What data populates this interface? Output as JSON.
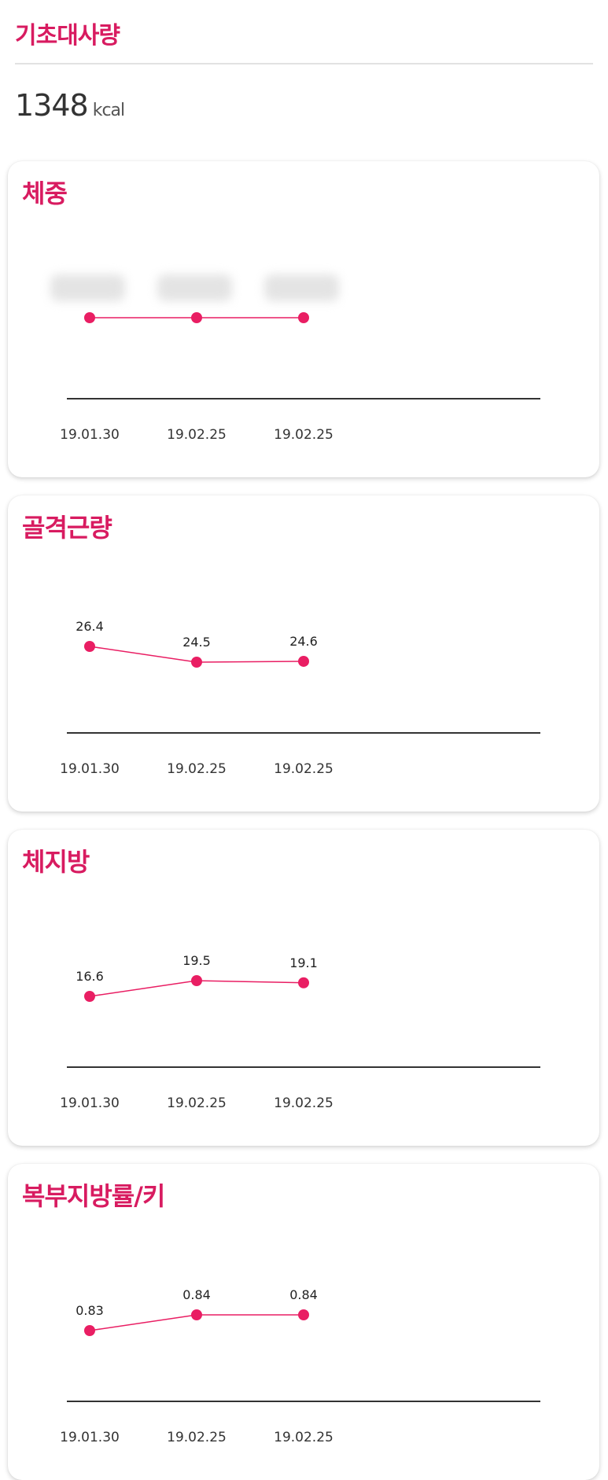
{
  "bmr": {
    "title": "기초대사량",
    "value": "1348",
    "unit": "kcal"
  },
  "colors": {
    "accent": "#e91e63",
    "title": "#d81b60",
    "axis": "#333333"
  },
  "cards": [
    {
      "title": "체중",
      "dates": [
        "19.01.30",
        "19.02.25",
        "19.02.25"
      ],
      "values": [
        null,
        null,
        null
      ],
      "labels_blurred": true
    },
    {
      "title": "골격근량",
      "dates": [
        "19.01.30",
        "19.02.25",
        "19.02.25"
      ],
      "values": [
        26.4,
        24.5,
        24.6
      ],
      "labels": [
        "26.4",
        "24.5",
        "24.6"
      ]
    },
    {
      "title": "체지방",
      "dates": [
        "19.01.30",
        "19.02.25",
        "19.02.25"
      ],
      "values": [
        16.6,
        19.5,
        19.1
      ],
      "labels": [
        "16.6",
        "19.5",
        "19.1"
      ]
    },
    {
      "title": "복부지방률/키",
      "dates": [
        "19.01.30",
        "19.02.25",
        "19.02.25"
      ],
      "values": [
        0.83,
        0.84,
        0.84
      ],
      "labels": [
        "0.83",
        "0.84",
        "0.84"
      ]
    }
  ]
}
